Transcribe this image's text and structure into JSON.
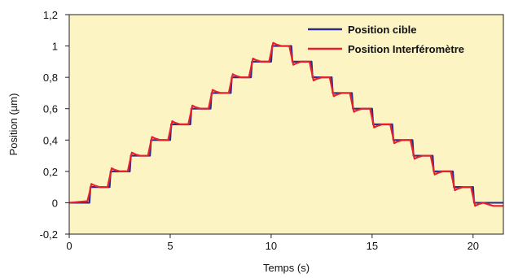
{
  "chart_data": {
    "type": "line",
    "xlabel": "Temps (s)",
    "ylabel": "Position (µm)",
    "xlim": [
      0,
      21.5
    ],
    "ylim": [
      -0.2,
      1.2
    ],
    "x_ticks": [
      0,
      5,
      10,
      15,
      20
    ],
    "x_tick_labels": [
      "0",
      "5",
      "10",
      "15",
      "20"
    ],
    "y_ticks": [
      -0.2,
      0,
      0.2,
      0.4,
      0.6,
      0.8,
      1.0,
      1.2
    ],
    "y_tick_labels": [
      "-0,2",
      "0",
      "0,2",
      "0,4",
      "0,6",
      "0,8",
      "1",
      "1,2"
    ],
    "grid": false,
    "background_color": "#fdf4c4",
    "legend_position": "top-right",
    "series": [
      {
        "name": "Position cible",
        "color": "#2b2f8c",
        "x": [
          0,
          1.0,
          1.05,
          2.0,
          2.05,
          3.0,
          3.05,
          4.0,
          4.05,
          5.0,
          5.05,
          6.0,
          6.05,
          7.0,
          7.05,
          8.0,
          8.05,
          9.0,
          9.05,
          10.0,
          10.05,
          11.0,
          11.05,
          12.0,
          12.05,
          13.0,
          13.05,
          14.0,
          14.05,
          15.0,
          15.05,
          16.0,
          16.05,
          17.0,
          17.05,
          18.0,
          18.05,
          19.0,
          19.05,
          20.0,
          20.05,
          21.5
        ],
        "values": [
          0,
          0,
          0.1,
          0.1,
          0.2,
          0.2,
          0.3,
          0.3,
          0.4,
          0.4,
          0.5,
          0.5,
          0.6,
          0.6,
          0.7,
          0.7,
          0.8,
          0.8,
          0.9,
          0.9,
          1.0,
          1.0,
          0.9,
          0.9,
          0.8,
          0.8,
          0.7,
          0.7,
          0.6,
          0.6,
          0.5,
          0.5,
          0.4,
          0.4,
          0.3,
          0.3,
          0.2,
          0.2,
          0.1,
          0.1,
          0.0,
          0.0
        ]
      },
      {
        "name": "Position Interféromètre",
        "color": "#e8202a",
        "x": [
          0,
          0.9,
          1.0,
          1.1,
          1.25,
          1.5,
          1.9,
          2.0,
          2.1,
          2.25,
          2.5,
          2.9,
          3.0,
          3.1,
          3.25,
          3.5,
          3.9,
          4.0,
          4.1,
          4.25,
          4.5,
          4.9,
          5.0,
          5.1,
          5.25,
          5.5,
          5.9,
          6.0,
          6.1,
          6.25,
          6.5,
          6.9,
          7.0,
          7.1,
          7.25,
          7.5,
          7.9,
          8.0,
          8.1,
          8.25,
          8.5,
          8.9,
          9.0,
          9.1,
          9.25,
          9.5,
          9.9,
          10.0,
          10.1,
          10.25,
          10.5,
          10.9,
          11.0,
          11.1,
          11.25,
          11.5,
          11.9,
          12.0,
          12.1,
          12.25,
          12.5,
          12.9,
          13.0,
          13.1,
          13.25,
          13.5,
          13.9,
          14.0,
          14.1,
          14.25,
          14.5,
          14.9,
          15.0,
          15.1,
          15.25,
          15.5,
          15.9,
          16.0,
          16.1,
          16.25,
          16.5,
          16.9,
          17.0,
          17.1,
          17.25,
          17.5,
          17.9,
          18.0,
          18.1,
          18.25,
          18.5,
          18.9,
          19.0,
          19.1,
          19.25,
          19.5,
          19.9,
          20.0,
          20.1,
          20.25,
          20.5,
          21.0,
          21.5
        ],
        "values": [
          0,
          0.01,
          0.06,
          0.12,
          0.11,
          0.1,
          0.1,
          0.16,
          0.22,
          0.21,
          0.2,
          0.2,
          0.26,
          0.32,
          0.31,
          0.3,
          0.3,
          0.36,
          0.42,
          0.41,
          0.4,
          0.4,
          0.46,
          0.52,
          0.51,
          0.5,
          0.5,
          0.56,
          0.62,
          0.61,
          0.6,
          0.6,
          0.66,
          0.72,
          0.71,
          0.7,
          0.7,
          0.76,
          0.82,
          0.81,
          0.8,
          0.8,
          0.86,
          0.92,
          0.91,
          0.9,
          0.9,
          0.96,
          1.02,
          1.01,
          1.0,
          1.0,
          0.94,
          0.88,
          0.89,
          0.9,
          0.9,
          0.84,
          0.78,
          0.79,
          0.8,
          0.8,
          0.74,
          0.68,
          0.69,
          0.7,
          0.7,
          0.64,
          0.58,
          0.59,
          0.6,
          0.6,
          0.54,
          0.48,
          0.49,
          0.5,
          0.5,
          0.44,
          0.38,
          0.39,
          0.4,
          0.4,
          0.34,
          0.28,
          0.29,
          0.3,
          0.3,
          0.24,
          0.18,
          0.19,
          0.2,
          0.2,
          0.14,
          0.08,
          0.09,
          0.1,
          0.1,
          0.04,
          -0.02,
          -0.01,
          0.0,
          -0.02,
          -0.02
        ]
      }
    ]
  }
}
